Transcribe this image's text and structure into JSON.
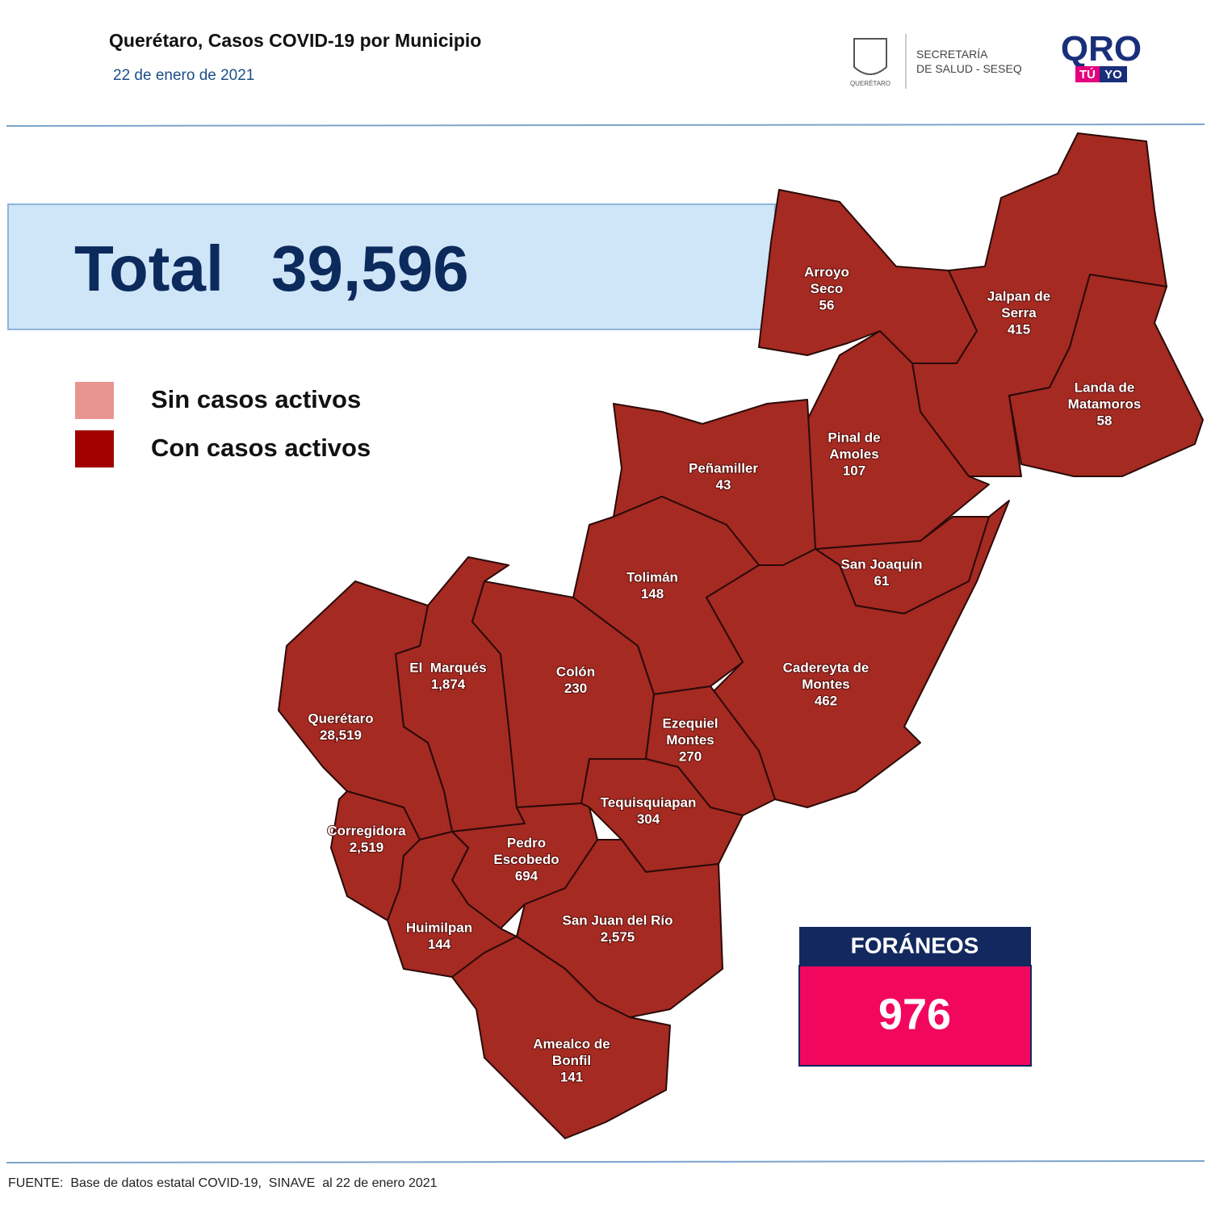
{
  "header": {
    "title": "Querétaro, Casos COVID-19 por Municipio",
    "date": "22 de enero de 2021",
    "logos": {
      "seal_caption": "QUERÉTARO",
      "secretaria": [
        "SECRETARÍA",
        "DE SALUD - SESEQ"
      ],
      "qro": "QRO",
      "tu": "TÚ",
      "yo": "YO"
    }
  },
  "total": {
    "label": "Total",
    "value": "39,596"
  },
  "legend": [
    {
      "label": "Sin casos activos",
      "color": "#e8948f"
    },
    {
      "label": "Con casos activos",
      "color": "#a30000"
    }
  ],
  "municipalities": [
    {
      "name": [
        "Arroyo",
        "Seco"
      ],
      "cases": "56"
    },
    {
      "name": [
        "Jalpan de",
        "Serra"
      ],
      "cases": "415"
    },
    {
      "name": [
        "Landa de",
        "Matamoros"
      ],
      "cases": "58"
    },
    {
      "name": [
        "Pinal de",
        "Amoles"
      ],
      "cases": "107"
    },
    {
      "name": [
        "Peñamiller"
      ],
      "cases": "43"
    },
    {
      "name": [
        "San Joaquín"
      ],
      "cases": "61"
    },
    {
      "name": [
        "Tolimán"
      ],
      "cases": "148"
    },
    {
      "name": [
        "Cadereyta de",
        "Montes"
      ],
      "cases": "462"
    },
    {
      "name": [
        "El  Marqués"
      ],
      "cases": "1,874"
    },
    {
      "name": [
        "Colón"
      ],
      "cases": "230"
    },
    {
      "name": [
        "Querétaro"
      ],
      "cases": "28,519"
    },
    {
      "name": [
        "Ezequiel",
        "Montes"
      ],
      "cases": "270"
    },
    {
      "name": [
        "Tequisquiapan"
      ],
      "cases": "304"
    },
    {
      "name": [
        "Corregidora"
      ],
      "cases": "2,519"
    },
    {
      "name": [
        "Pedro",
        "Escobedo"
      ],
      "cases": "694"
    },
    {
      "name": [
        "Huimilpan"
      ],
      "cases": "144"
    },
    {
      "name": [
        "San Juan del Río"
      ],
      "cases": "2,575"
    },
    {
      "name": [
        "Amealco de",
        "Bonfil"
      ],
      "cases": "141"
    }
  ],
  "foraneos": {
    "label": "FORÁNEOS",
    "value": "976"
  },
  "source": "FUENTE:  Base de datos estatal COVID-19,  SINAVE  al 22 de enero 2021"
}
